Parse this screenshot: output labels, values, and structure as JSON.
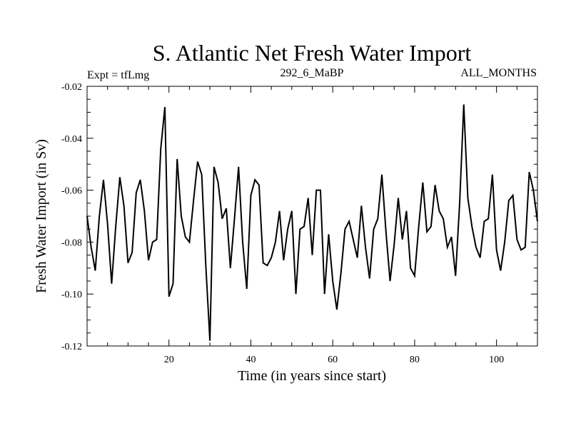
{
  "chart_data": {
    "type": "line",
    "title": "S. Atlantic Net Fresh Water Import",
    "subtitle_left": "Expt = tfLmg",
    "subtitle_center": "292_6_MaBP",
    "subtitle_right": "ALL_MONTHS",
    "xlabel": "Time (in years since start)",
    "ylabel": "Fresh Water Import (in Sv)",
    "xlim": [
      0,
      110
    ],
    "ylim": [
      -0.12,
      -0.02
    ],
    "x_ticks": [
      20,
      40,
      60,
      80,
      100
    ],
    "x_tick_labels": [
      "20",
      "40",
      "60",
      "80",
      "100"
    ],
    "y_ticks": [
      -0.02,
      -0.04,
      -0.06,
      -0.08,
      -0.1,
      -0.12
    ],
    "y_tick_labels": [
      "-0.02",
      "-0.04",
      "-0.06",
      "-0.08",
      "-0.10",
      "-0.12"
    ],
    "series": [
      {
        "name": "Fresh Water Import",
        "x": [
          0,
          1,
          2,
          3,
          4,
          5,
          6,
          7,
          8,
          9,
          10,
          11,
          12,
          13,
          14,
          15,
          16,
          17,
          18,
          19,
          20,
          21,
          22,
          23,
          24,
          25,
          26,
          27,
          28,
          29,
          30,
          31,
          32,
          33,
          34,
          35,
          36,
          37,
          38,
          39,
          40,
          41,
          42,
          43,
          44,
          45,
          46,
          47,
          48,
          49,
          50,
          51,
          52,
          53,
          54,
          55,
          56,
          57,
          58,
          59,
          60,
          61,
          62,
          63,
          64,
          65,
          66,
          67,
          68,
          69,
          70,
          71,
          72,
          73,
          74,
          75,
          76,
          77,
          78,
          79,
          80,
          81,
          82,
          83,
          84,
          85,
          86,
          87,
          88,
          89,
          90,
          91,
          92,
          93,
          94,
          95,
          96,
          97,
          98,
          99,
          100,
          101,
          102,
          103,
          104,
          105,
          106,
          107,
          108,
          109,
          110
        ],
        "values": [
          -0.07,
          -0.082,
          -0.091,
          -0.07,
          -0.056,
          -0.073,
          -0.096,
          -0.074,
          -0.055,
          -0.066,
          -0.088,
          -0.084,
          -0.061,
          -0.056,
          -0.068,
          -0.087,
          -0.08,
          -0.079,
          -0.044,
          -0.028,
          -0.101,
          -0.096,
          -0.048,
          -0.07,
          -0.078,
          -0.08,
          -0.064,
          -0.049,
          -0.054,
          -0.089,
          -0.118,
          -0.051,
          -0.057,
          -0.071,
          -0.067,
          -0.09,
          -0.071,
          -0.051,
          -0.08,
          -0.098,
          -0.062,
          -0.056,
          -0.058,
          -0.088,
          -0.089,
          -0.086,
          -0.08,
          -0.068,
          -0.087,
          -0.075,
          -0.068,
          -0.1,
          -0.075,
          -0.074,
          -0.063,
          -0.085,
          -0.06,
          -0.06,
          -0.1,
          -0.077,
          -0.095,
          -0.106,
          -0.092,
          -0.075,
          -0.072,
          -0.079,
          -0.086,
          -0.066,
          -0.082,
          -0.094,
          -0.075,
          -0.071,
          -0.054,
          -0.076,
          -0.095,
          -0.081,
          -0.063,
          -0.079,
          -0.068,
          -0.09,
          -0.093,
          -0.074,
          -0.057,
          -0.076,
          -0.074,
          -0.058,
          -0.068,
          -0.071,
          -0.082,
          -0.078,
          -0.093,
          -0.065,
          -0.027,
          -0.063,
          -0.074,
          -0.082,
          -0.086,
          -0.072,
          -0.071,
          -0.054,
          -0.083,
          -0.091,
          -0.08,
          -0.064,
          -0.062,
          -0.079,
          -0.083,
          -0.082,
          -0.053,
          -0.06,
          -0.072
        ]
      }
    ]
  }
}
